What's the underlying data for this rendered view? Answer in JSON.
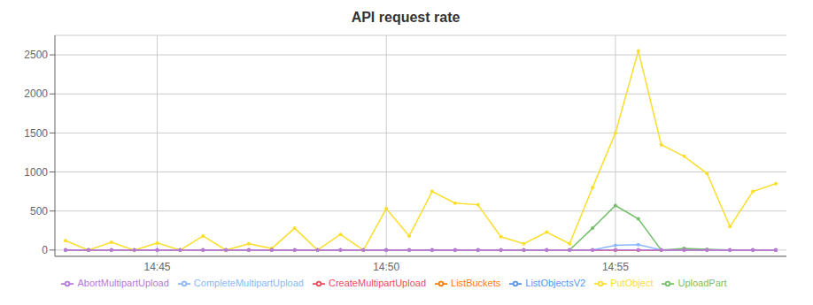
{
  "chart_data": {
    "type": "line",
    "title": "API request rate",
    "categories": [
      null,
      null,
      null,
      null,
      "14:45",
      null,
      null,
      null,
      null,
      null,
      null,
      null,
      null,
      null,
      "14:50",
      null,
      null,
      null,
      null,
      null,
      null,
      null,
      null,
      null,
      "14:55",
      null,
      null,
      null,
      null,
      null,
      null,
      null
    ],
    "series": [
      {
        "name": "UploadPart",
        "color": "#73bf69",
        "marker": "circle",
        "values": [
          0,
          0,
          0,
          0,
          0,
          0,
          0,
          0,
          0,
          0,
          0,
          0,
          0,
          0,
          0,
          0,
          0,
          0,
          0,
          0,
          0,
          0,
          0,
          280,
          570,
          400,
          0,
          20,
          10,
          0,
          0,
          0
        ]
      },
      {
        "name": "PutObject",
        "color": "#fade2a",
        "marker": "circle",
        "values": [
          120,
          0,
          100,
          0,
          90,
          0,
          180,
          0,
          80,
          20,
          280,
          0,
          200,
          0,
          530,
          180,
          750,
          600,
          580,
          170,
          80,
          230,
          80,
          800,
          1500,
          2550,
          1350,
          1200,
          980,
          300,
          750,
          850
        ]
      },
      {
        "name": "ListObjectsV2",
        "color": "#5794f2",
        "marker": "circle",
        "values": [
          0,
          0,
          0,
          0,
          0,
          0,
          0,
          0,
          0,
          0,
          0,
          0,
          0,
          0,
          0,
          0,
          0,
          0,
          0,
          0,
          0,
          0,
          0,
          0,
          0,
          0,
          0,
          0,
          0,
          0,
          0,
          0
        ]
      },
      {
        "name": "ListBuckets",
        "color": "#ff7c00",
        "marker": "circle",
        "values": [
          0,
          0,
          0,
          0,
          0,
          0,
          0,
          0,
          0,
          0,
          0,
          0,
          0,
          0,
          0,
          0,
          0,
          0,
          0,
          0,
          0,
          0,
          0,
          0,
          0,
          0,
          0,
          0,
          0,
          0,
          0,
          0
        ]
      },
      {
        "name": "CreateMultipartUpload",
        "color": "#f2495c",
        "marker": "circle",
        "values": [
          0,
          0,
          0,
          0,
          0,
          0,
          0,
          0,
          0,
          0,
          0,
          0,
          0,
          0,
          0,
          0,
          0,
          0,
          0,
          0,
          0,
          0,
          0,
          0,
          0,
          0,
          0,
          0,
          0,
          0,
          0,
          0
        ]
      },
      {
        "name": "CompleteMultipartUpload",
        "color": "#8ab8ff",
        "marker": "circle",
        "values": [
          0,
          0,
          0,
          0,
          0,
          0,
          0,
          0,
          0,
          0,
          0,
          0,
          0,
          0,
          0,
          0,
          0,
          0,
          0,
          0,
          0,
          0,
          0,
          0,
          60,
          70,
          0,
          0,
          0,
          0,
          0,
          0
        ]
      },
      {
        "name": "AbortMultipartUpload",
        "color": "#b877d9",
        "marker": "circle",
        "values": [
          0,
          0,
          0,
          0,
          0,
          0,
          0,
          0,
          0,
          0,
          0,
          0,
          0,
          0,
          0,
          0,
          0,
          0,
          0,
          0,
          0,
          0,
          0,
          0,
          0,
          0,
          0,
          0,
          0,
          0,
          0,
          0
        ]
      }
    ],
    "ylim": [
      -80,
      2750
    ],
    "yticks": [
      0,
      500,
      1000,
      1500,
      2000,
      2500
    ],
    "grid": true,
    "legend": "bottom"
  }
}
